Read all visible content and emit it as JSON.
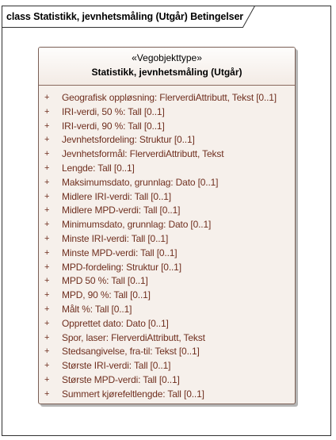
{
  "frame": {
    "title": "class Statistikk, jevnhetsmåling (Utgår) Betingelser"
  },
  "class_box": {
    "stereotype": "«Vegobjekttype»",
    "name": "Statistikk, jevnhetsmåling (Utgår)",
    "visibility_symbol": "+",
    "attributes": [
      "Geografisk oppløsning: FlerverdiAttributt, Tekst [0..1]",
      "IRI-verdi, 50 %: Tall [0..1]",
      "IRI-verdi, 90 %: Tall [0..1]",
      "Jevnhetsfordeling: Struktur [0..1]",
      "Jevnhetsformål: FlerverdiAttributt, Tekst",
      "Lengde: Tall [0..1]",
      "Maksimumsdato, grunnlag: Dato [0..1]",
      "Midlere IRI-verdi: Tall [0..1]",
      "Midlere MPD-verdi: Tall [0..1]",
      "Minimumsdato, grunnlag: Dato [0..1]",
      "Minste IRI-verdi: Tall [0..1]",
      "Minste MPD-verdi: Tall [0..1]",
      "MPD-fordeling: Struktur [0..1]",
      "MPD 50 %: Tall [0..1]",
      "MPD, 90 %: Tall [0..1]",
      "Målt %: Tall [0..1]",
      "Opprettet dato: Dato [0..1]",
      "Spor, laser: FlerverdiAttributt, Tekst",
      "Stedsangivelse, fra-til: Tekst [0..1]",
      "Største IRI-verdi: Tall [0..1]",
      "Største MPD-verdi: Tall [0..1]",
      "Summert kjørefeltlengde: Tall [0..1]"
    ]
  },
  "colors": {
    "attribute_text": "#6f2f1f",
    "box_fill": "#f6f0eb",
    "box_border": "#7a5f55"
  }
}
